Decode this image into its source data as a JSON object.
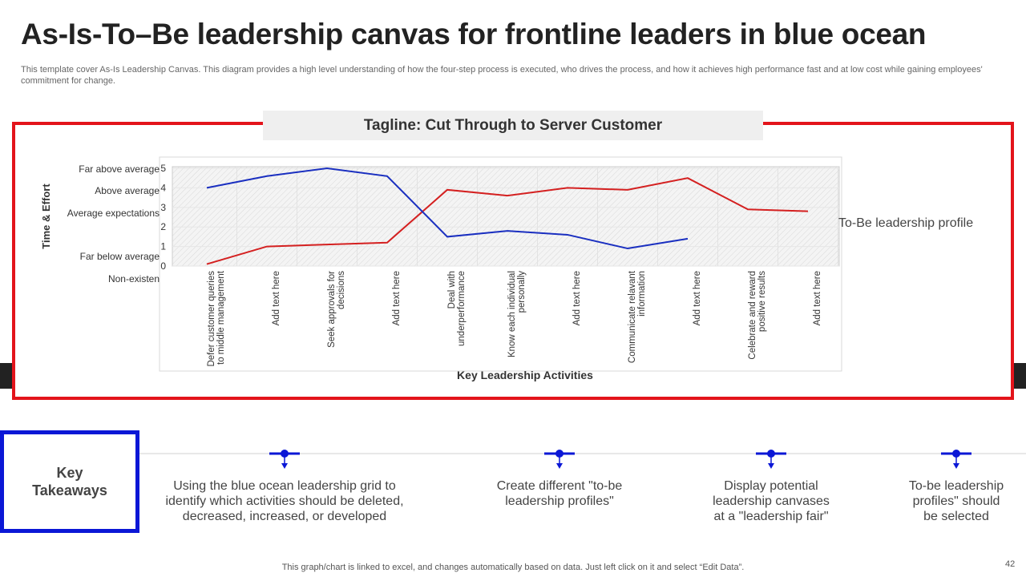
{
  "header": {
    "title": "As-Is-To–Be leadership canvas for frontline leaders in blue ocean",
    "subtitle": "This template cover As-Is Leadership Canvas. This diagram provides a high level understanding of how the four-step process is executed, who drives the process, and how it achieves high performance fast and at low cost while gaining employees' commitment for change."
  },
  "tagline": "Tagline: Cut Through to Server Customer",
  "chart_data": {
    "type": "line",
    "x_label": "Key Leadership Activities",
    "y_label": "Time & Effort",
    "y_level_labels": [
      "Far above average",
      "Above average",
      "Average expectations",
      "Far below average",
      "Non-existen"
    ],
    "categories": [
      "Defer customer queries to middle management",
      "Add text here",
      "Seek approvals for decisions",
      "Add text here",
      "Deal with underperformance",
      "Know each individual personally",
      "Add text here",
      "Communicate relavant information",
      "Add text here",
      "Celebrate and reward positive results",
      "Add text here"
    ],
    "series": [
      {
        "name": "To-Be leadership profile",
        "color": "#d42020",
        "values": [
          0.1,
          1.0,
          1.1,
          1.2,
          3.9,
          3.6,
          4.0,
          3.9,
          4.5,
          2.9,
          2.8
        ]
      },
      {
        "color": "#1a2fc0",
        "values": [
          4.0,
          4.6,
          5.0,
          4.6,
          1.5,
          1.8,
          1.6,
          0.9,
          1.4,
          null,
          null
        ]
      }
    ],
    "ylim": [
      0,
      5
    ],
    "yticks": [
      0,
      1,
      2,
      3,
      4,
      5
    ],
    "grid": true
  },
  "takeaways": {
    "title": "Key Takeaways",
    "items": [
      "Using the blue ocean leadership grid to identify which activities should be deleted, decreased, increased, or developed",
      "Create different \"to-be leadership profiles\"",
      "Display potential leadership canvases at a \"leadership fair\"",
      "To-be leadership profiles\" should be selected"
    ]
  },
  "footer": "This graph/chart is linked to excel, and changes automatically based on data. Just left click on it and select “Edit Data”.",
  "page_number": "42"
}
